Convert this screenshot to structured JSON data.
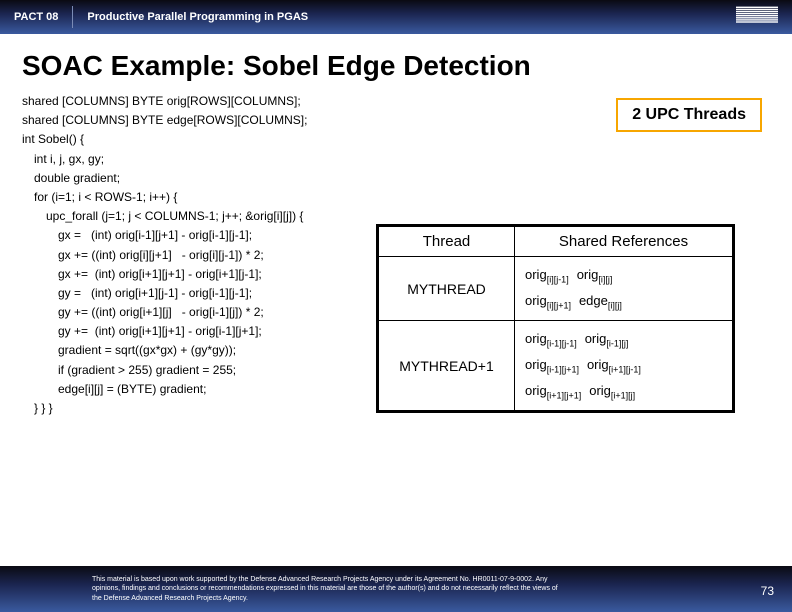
{
  "header": {
    "left": "PACT 08",
    "subtitle": "Productive Parallel Programming in PGAS"
  },
  "title": "SOAC Example: Sobel Edge Detection",
  "upcThreads": "2 UPC Threads",
  "code": [
    {
      "cls": "",
      "t": "shared [COLUMNS] BYTE orig[ROWS][COLUMNS];"
    },
    {
      "cls": "",
      "t": "shared [COLUMNS] BYTE edge[ROWS][COLUMNS];"
    },
    {
      "cls": "",
      "t": "int Sobel() {"
    },
    {
      "cls": "in1",
      "t": "int i, j, gx, gy;"
    },
    {
      "cls": "in1",
      "t": "double gradient;"
    },
    {
      "cls": "in1",
      "t": "for (i=1; i < ROWS-1; i++) {"
    },
    {
      "cls": "in2",
      "t": "upc_forall (j=1; j < COLUMNS-1; j++; &orig[i][j]) {"
    },
    {
      "cls": "in3",
      "t": "gx =   (int) orig[i-1][j+1] - orig[i-1][j-1];"
    },
    {
      "cls": "in3",
      "t": "gx += ((int) orig[i][j+1]   - orig[i][j-1]) * 2;"
    },
    {
      "cls": "in3",
      "t": "gx +=  (int) orig[i+1][j+1] - orig[i+1][j-1];"
    },
    {
      "cls": "in3",
      "t": "gy =   (int) orig[i+1][j-1] - orig[i-1][j-1];"
    },
    {
      "cls": "in3",
      "t": "gy += ((int) orig[i+1][j]   - orig[i-1][j]) * 2;"
    },
    {
      "cls": "in3",
      "t": "gy +=  (int) orig[i+1][j+1] - orig[i-1][j+1];"
    },
    {
      "cls": "in3",
      "t": "gradient = sqrt((gx*gx) + (gy*gy));"
    },
    {
      "cls": "in3",
      "t": "if (gradient > 255) gradient = 255;"
    },
    {
      "cls": "in3",
      "t": "edge[i][j] = (BYTE) gradient;"
    },
    {
      "cls": "in1",
      "t": "} } }"
    }
  ],
  "table": {
    "headers": [
      "Thread",
      "Shared References"
    ],
    "rows": [
      {
        "thread": "MYTHREAD",
        "refs": [
          [
            "orig",
            "[i][j-1]"
          ],
          [
            "orig",
            "[i][j]"
          ],
          [
            "orig",
            "[i][j+1]"
          ],
          [
            "edge",
            "[i][j]"
          ]
        ]
      },
      {
        "thread": "MYTHREAD+1",
        "refs": [
          [
            "orig",
            "[i-1][j-1]"
          ],
          [
            "orig",
            "[i-1][j]"
          ],
          [
            "orig",
            "[i-1][j+1]"
          ],
          [
            "orig",
            "[i+1][j-1]"
          ],
          [
            "orig",
            "[i+1][j+1]"
          ],
          [
            "orig",
            "[i+1][j]"
          ]
        ]
      }
    ]
  },
  "footer": {
    "text": "This material is based upon work supported by the Defense Advanced Research Projects Agency under its Agreement No. HR0011-07-9-0002. Any opinions, findings and conclusions or recommendations expressed in this material are those of the author(s) and do not necessarily reflect the views of the Defense Advanced Research Projects Agency.",
    "page": "73"
  }
}
